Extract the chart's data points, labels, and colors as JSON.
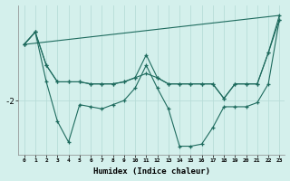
{
  "xlabel": "Humidex (Indice chaleur)",
  "bg_color": "#d4f0ec",
  "line_color": "#1e6b5e",
  "grid_color_v": "#b8ddd8",
  "grid_color_h": "#b8ddd8",
  "y_tick_val": -2,
  "xlim": [
    -0.5,
    23.5
  ],
  "ylim": [
    -3.3,
    0.3
  ],
  "series1_x": [
    0,
    1,
    2,
    3,
    4,
    5,
    6,
    7,
    8,
    9,
    10,
    11,
    12,
    13,
    14,
    15,
    16,
    17,
    18,
    19,
    20,
    21,
    22,
    23
  ],
  "series1_y": [
    -0.65,
    -0.35,
    -1.15,
    -1.55,
    -1.55,
    -1.55,
    -1.6,
    -1.6,
    -1.6,
    -1.55,
    -1.45,
    -1.35,
    -1.45,
    -1.6,
    -1.6,
    -1.6,
    -1.6,
    -1.6,
    -1.95,
    -1.6,
    -1.6,
    -1.6,
    -0.85,
    -0.05
  ],
  "series2_x": [
    0,
    1,
    2,
    3,
    4,
    5,
    6,
    7,
    8,
    9,
    10,
    11,
    12,
    13,
    14,
    15,
    16,
    17,
    18,
    19,
    20,
    21,
    22,
    23
  ],
  "series2_y": [
    -0.65,
    -0.35,
    -1.55,
    -2.5,
    -3.0,
    -2.1,
    -2.15,
    -2.2,
    -2.1,
    -2.0,
    -1.7,
    -1.15,
    -1.7,
    -2.2,
    -3.1,
    -3.1,
    -3.05,
    -2.65,
    -2.15,
    -2.15,
    -2.15,
    -2.05,
    -1.6,
    -0.05
  ],
  "series3_x": [
    0,
    1,
    2,
    3,
    4,
    5,
    6,
    7,
    8,
    9,
    10,
    11,
    12,
    13,
    14,
    15,
    16,
    17,
    18,
    19,
    20,
    21,
    22,
    23
  ],
  "series3_y": [
    -0.65,
    -0.35,
    -1.15,
    -1.55,
    -1.55,
    -1.55,
    -1.6,
    -1.6,
    -1.6,
    -1.55,
    -1.45,
    -0.9,
    -1.45,
    -1.6,
    -1.6,
    -1.6,
    -1.6,
    -1.6,
    -1.95,
    -1.6,
    -1.6,
    -1.6,
    -0.85,
    0.05
  ],
  "series4_x": [
    0,
    23
  ],
  "series4_y": [
    -0.65,
    0.05
  ]
}
